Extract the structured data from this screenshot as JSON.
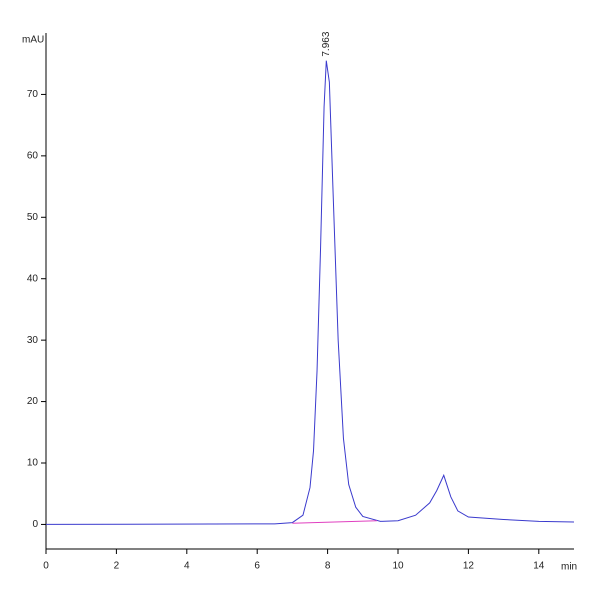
{
  "chart_data": {
    "type": "line",
    "y_label": "mAU",
    "x_label": "min",
    "xlim": [
      0,
      15
    ],
    "ylim": [
      -4,
      80
    ],
    "xticks": [
      0,
      2,
      4,
      6,
      8,
      10,
      12,
      14
    ],
    "yticks": [
      0,
      10,
      20,
      30,
      40,
      50,
      60,
      70
    ],
    "annotations": [
      {
        "x": 7.963,
        "label": "7.963"
      }
    ],
    "series": [
      {
        "color": "#3a3acd",
        "x": [
          0,
          6.5,
          7.0,
          7.3,
          7.5,
          7.6,
          7.7,
          7.8,
          7.9,
          7.963,
          8.05,
          8.15,
          8.3,
          8.45,
          8.6,
          8.8,
          9.0,
          9.5,
          10.0,
          10.5,
          10.9,
          11.1,
          11.3,
          11.5,
          11.7,
          12.0,
          13.0,
          14.0,
          15.0
        ],
        "values": [
          0,
          0.1,
          0.3,
          1.5,
          6,
          12,
          25,
          45,
          68,
          75.5,
          72,
          55,
          30,
          14,
          6.5,
          2.8,
          1.3,
          0.5,
          0.6,
          1.5,
          3.5,
          5.5,
          8.0,
          4.5,
          2.2,
          1.2,
          0.8,
          0.5,
          0.4
        ]
      },
      {
        "color": "#e040c0",
        "x": [
          7.0,
          9.4
        ],
        "values": [
          0.2,
          0.6
        ]
      }
    ]
  }
}
